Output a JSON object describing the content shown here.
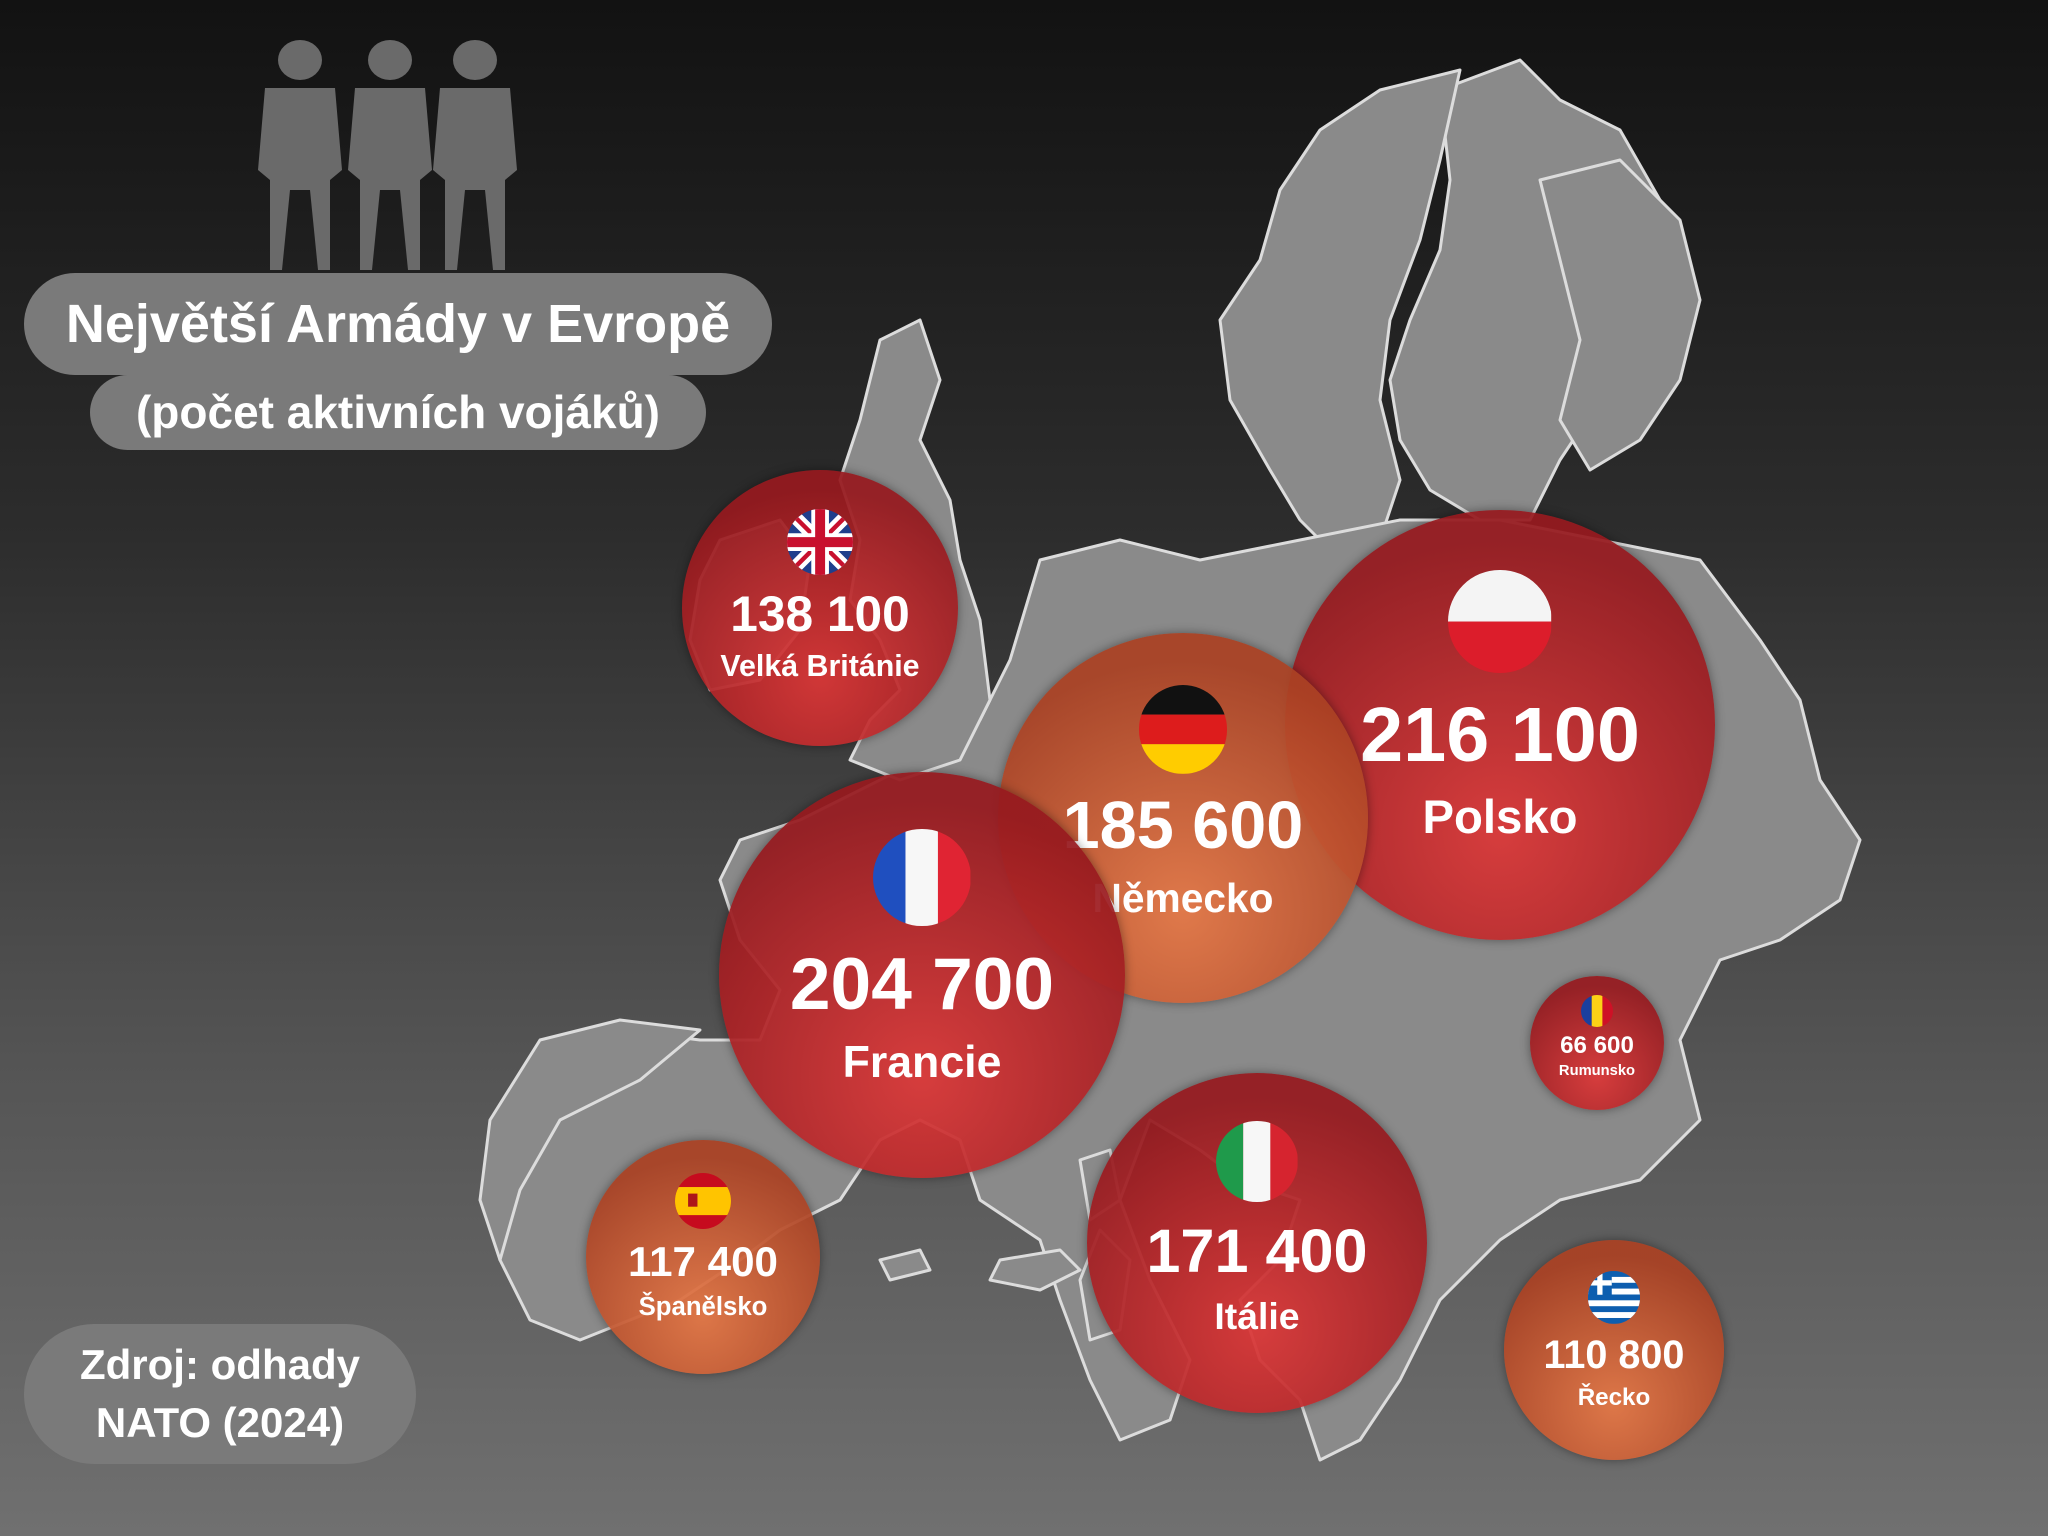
{
  "header": {
    "title": "Největší Armády v Evropě",
    "subtitle": "(počet aktivních vojáků)"
  },
  "source": {
    "line1": "Zdroj: odhady",
    "line2": "NATO (2024)"
  },
  "chart_data": {
    "type": "bubble-map",
    "title": "Největší Armády v Evropě",
    "subtitle": "(počet aktivních vojáků)",
    "series": [
      {
        "country": "Velká Británie",
        "value": 138100,
        "label": "138 100",
        "flag": "gb-flag",
        "color": "#b82a2e"
      },
      {
        "country": "Polsko",
        "value": 216100,
        "label": "216 100",
        "flag": "pl-flag",
        "color": "#b82a2e"
      },
      {
        "country": "Německo",
        "value": 185600,
        "label": "185 600",
        "flag": "de-flag",
        "color": "#d4683a"
      },
      {
        "country": "Francie",
        "value": 204700,
        "label": "204 700",
        "flag": "fr-flag",
        "color": "#b82a2e"
      },
      {
        "country": "Rumunsko",
        "value": 66600,
        "label": "66 600",
        "flag": "ro-flag",
        "color": "#b82a2e"
      },
      {
        "country": "Itálie",
        "value": 171400,
        "label": "171 400",
        "flag": "it-flag",
        "color": "#b82a2e"
      },
      {
        "country": "Španělsko",
        "value": 117400,
        "label": "117 400",
        "flag": "es-flag",
        "color": "#d4683a"
      },
      {
        "country": "Řecko",
        "value": 110800,
        "label": "110 800",
        "flag": "gr-flag",
        "color": "#d4683a"
      }
    ]
  }
}
